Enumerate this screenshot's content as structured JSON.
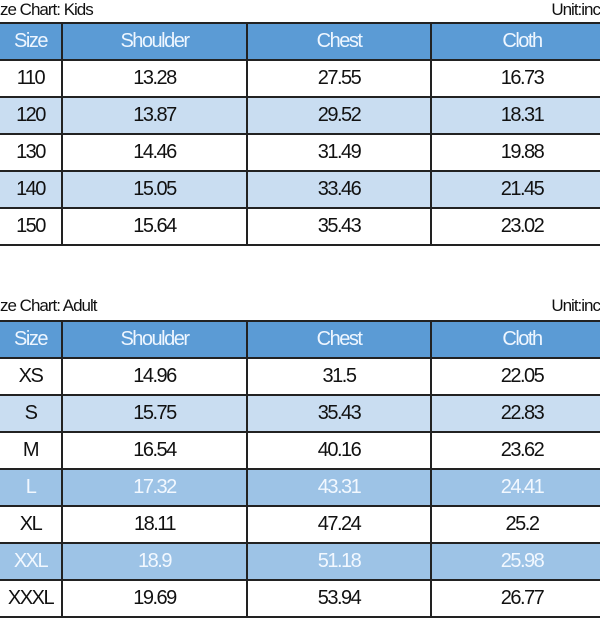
{
  "kids": {
    "title": "ze Chart: Kids",
    "unit": "Unit:inc",
    "headers": [
      "Size",
      "Shoulder",
      "Chest",
      "Cloth"
    ],
    "rows": [
      [
        "110",
        "13.28",
        "27.55",
        "16.73"
      ],
      [
        "120",
        "13.87",
        "29.52",
        "18.31"
      ],
      [
        "130",
        "14.46",
        "31.49",
        "19.88"
      ],
      [
        "140",
        "15.05",
        "33.46",
        "21.45"
      ],
      [
        "150",
        "15.64",
        "35.43",
        "23.02"
      ]
    ]
  },
  "adult": {
    "title": "ze Chart: Adult",
    "unit": "Unit:inc",
    "headers": [
      "Size",
      "Shoulder",
      "Chest",
      "Cloth"
    ],
    "rows": [
      [
        "XS",
        "14.96",
        "31.5",
        "22.05"
      ],
      [
        "S",
        "15.75",
        "35.43",
        "22.83"
      ],
      [
        "M",
        "16.54",
        "40.16",
        "23.62"
      ],
      [
        "L",
        "17.32",
        "43.31",
        "24.41"
      ],
      [
        "XL",
        "18.11",
        "47.24",
        "25.2"
      ],
      [
        "XXL",
        "18.9",
        "51.18",
        "25.98"
      ],
      [
        "XXXL",
        "19.69",
        "53.94",
        "26.77"
      ]
    ]
  },
  "colors": {
    "header": "#5b9bd5",
    "row_light": "#c9ddf1",
    "row_highlight": "#9dc3e6"
  }
}
